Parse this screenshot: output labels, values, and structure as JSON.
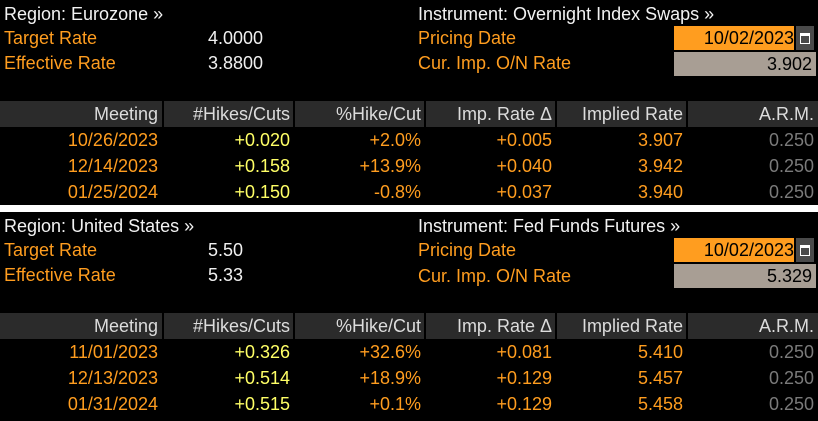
{
  "eurozone": {
    "region_label": "Region: Eurozone »",
    "instrument_label": "Instrument: Overnight Index Swaps »",
    "target_rate_label": "Target Rate",
    "target_rate_value": "4.0000",
    "effective_rate_label": "Effective Rate",
    "effective_rate_value": "3.8800",
    "pricing_date_label": "Pricing Date",
    "pricing_date_value": "10/02/2023",
    "cur_imp_label": "Cur. Imp. O/N Rate",
    "cur_imp_value": "3.902",
    "columns": [
      "Meeting",
      "#Hikes/Cuts",
      "%Hike/Cut",
      "Imp. Rate Δ",
      "Implied Rate",
      "A.R.M."
    ],
    "rows": [
      {
        "meeting": "10/26/2023",
        "hikes": "+0.020",
        "pct": "+2.0%",
        "imp_delta": "+0.005",
        "implied": "3.907",
        "arm": "0.250"
      },
      {
        "meeting": "12/14/2023",
        "hikes": "+0.158",
        "pct": "+13.9%",
        "imp_delta": "+0.040",
        "implied": "3.942",
        "arm": "0.250"
      },
      {
        "meeting": "01/25/2024",
        "hikes": "+0.150",
        "pct": "-0.8%",
        "imp_delta": "+0.037",
        "implied": "3.940",
        "arm": "0.250"
      }
    ]
  },
  "united_states": {
    "region_label": "Region: United States »",
    "instrument_label": "Instrument: Fed Funds Futures »",
    "target_rate_label": "Target Rate",
    "target_rate_value": "5.50",
    "effective_rate_label": "Effective Rate",
    "effective_rate_value": "5.33",
    "pricing_date_label": "Pricing Date",
    "pricing_date_value": "10/02/2023",
    "cur_imp_label": "Cur. Imp. O/N Rate",
    "cur_imp_value": "5.329",
    "columns": [
      "Meeting",
      "#Hikes/Cuts",
      "%Hike/Cut",
      "Imp. Rate Δ",
      "Implied Rate",
      "A.R.M."
    ],
    "rows": [
      {
        "meeting": "11/01/2023",
        "hikes": "+0.326",
        "pct": "+32.6%",
        "imp_delta": "+0.081",
        "implied": "5.410",
        "arm": "0.250"
      },
      {
        "meeting": "12/13/2023",
        "hikes": "+0.514",
        "pct": "+18.9%",
        "imp_delta": "+0.129",
        "implied": "5.457",
        "arm": "0.250"
      },
      {
        "meeting": "01/31/2024",
        "hikes": "+0.515",
        "pct": "+0.1%",
        "imp_delta": "+0.129",
        "implied": "5.458",
        "arm": "0.250"
      }
    ]
  },
  "icons": {
    "calendar": "calendar-icon"
  },
  "colors": {
    "label_orange": "#ff9d1f",
    "hikes_yellow": "#ffff66",
    "arm_gray": "#7a7a7a",
    "date_box": "#ff9d1f",
    "rate_box": "#a89e94",
    "header_bg": "#2b2b2b"
  }
}
